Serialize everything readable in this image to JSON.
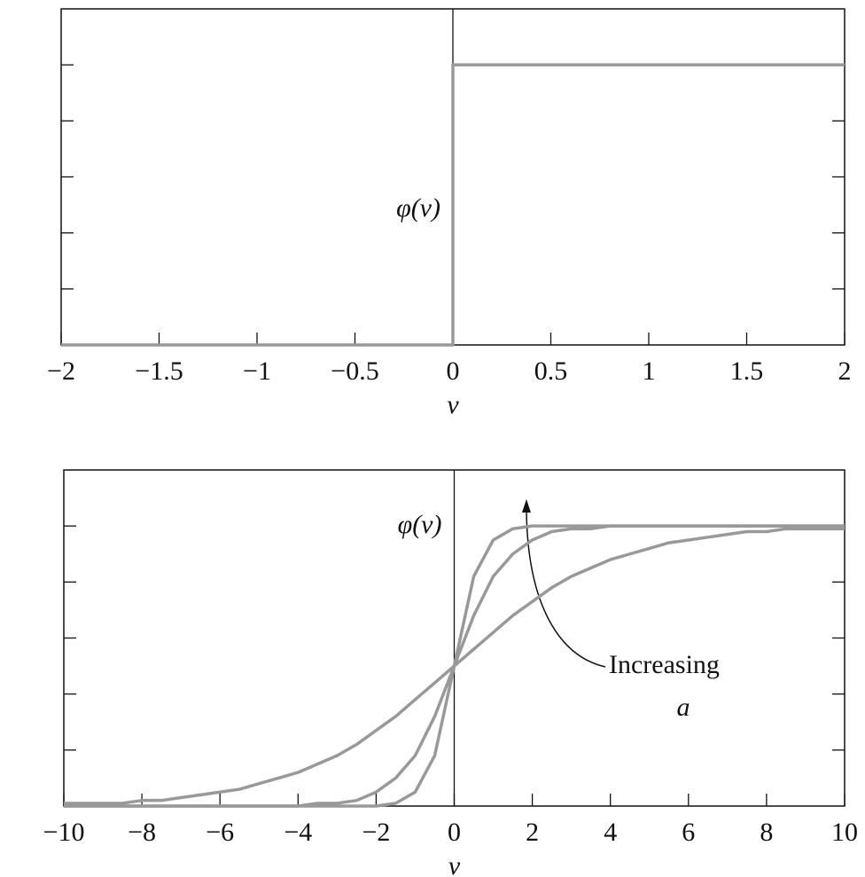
{
  "chart_data": [
    {
      "type": "line",
      "ylabel": "φ(v)",
      "xlabel": "v",
      "x": [
        -2,
        0,
        0,
        2
      ],
      "series": [
        {
          "color": "#999999",
          "values": [
            0,
            0,
            1,
            1
          ]
        }
      ],
      "xlim": [
        -2,
        2
      ],
      "ylim": [
        0,
        1.2
      ],
      "xticks": [
        {
          "value": -2,
          "label": "−2"
        },
        {
          "value": -1.5,
          "label": "−1.5"
        },
        {
          "value": -1,
          "label": "−1"
        },
        {
          "value": -0.5,
          "label": "−0.5"
        },
        0,
        0.5,
        1,
        1.5,
        2
      ],
      "yticks": [
        0.2,
        0.4,
        0.6,
        0.8,
        1
      ],
      "ytick_labels": false,
      "zero_line": true
    },
    {
      "type": "line",
      "ylabel": "φ(v)",
      "xlabel": "v",
      "annotations": [
        "Increasing",
        "a"
      ],
      "x": [
        -10,
        -9.5,
        -9,
        -8.5,
        -8,
        -7.5,
        -7,
        -6.5,
        -6,
        -5.5,
        -5,
        -4.5,
        -4,
        -3.5,
        -3,
        -2.5,
        -2,
        -1.5,
        -1,
        -0.5,
        0,
        0.5,
        1,
        1.5,
        2,
        2.5,
        3,
        3.5,
        4,
        4.5,
        5,
        5.5,
        6,
        6.5,
        7,
        7.5,
        8,
        8.5,
        9,
        9.5,
        10
      ],
      "series": [
        {
          "color": "#999999",
          "values": [
            0,
            0,
            0,
            0,
            0,
            0,
            0,
            0,
            0,
            0,
            0,
            0,
            0,
            0,
            0,
            0,
            0,
            0.01,
            0.05,
            0.18,
            0.5,
            0.82,
            0.95,
            0.99,
            1,
            1,
            1,
            1,
            1,
            1,
            1,
            1,
            1,
            1,
            1,
            1,
            1,
            1,
            1,
            1,
            1
          ]
        },
        {
          "color": "#999999",
          "values": [
            0,
            0,
            0,
            0,
            0,
            0,
            0,
            0,
            0,
            0,
            0,
            0,
            0,
            0.01,
            0.01,
            0.02,
            0.05,
            0.1,
            0.18,
            0.32,
            0.5,
            0.68,
            0.82,
            0.9,
            0.95,
            0.98,
            0.99,
            0.99,
            1,
            1,
            1,
            1,
            1,
            1,
            1,
            1,
            1,
            1,
            1,
            1,
            1
          ]
        },
        {
          "color": "#999999",
          "values": [
            0.01,
            0.01,
            0.01,
            0.01,
            0.02,
            0.02,
            0.03,
            0.04,
            0.05,
            0.06,
            0.08,
            0.1,
            0.12,
            0.15,
            0.18,
            0.22,
            0.27,
            0.32,
            0.38,
            0.44,
            0.5,
            0.56,
            0.62,
            0.68,
            0.73,
            0.78,
            0.82,
            0.85,
            0.88,
            0.9,
            0.92,
            0.94,
            0.95,
            0.96,
            0.97,
            0.98,
            0.98,
            0.99,
            0.99,
            0.99,
            0.99
          ]
        }
      ],
      "xlim": [
        -10,
        10
      ],
      "ylim": [
        0,
        1.2
      ],
      "xticks": [
        {
          "value": -10,
          "label": "−10"
        },
        {
          "value": -8,
          "label": "−8"
        },
        {
          "value": -6,
          "label": "−6"
        },
        {
          "value": -4,
          "label": "−4"
        },
        {
          "value": -2,
          "label": "−2"
        },
        0,
        2,
        4,
        6,
        8,
        10
      ],
      "yticks": [
        0.2,
        0.4,
        0.6,
        0.8,
        1
      ],
      "ytick_labels": false,
      "zero_line": true
    }
  ]
}
